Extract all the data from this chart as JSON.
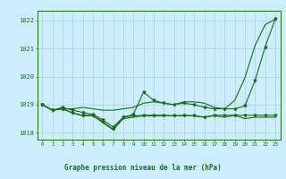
{
  "x": [
    0,
    1,
    2,
    3,
    4,
    5,
    6,
    7,
    8,
    9,
    10,
    11,
    12,
    13,
    14,
    15,
    16,
    17,
    18,
    19,
    20,
    21,
    22,
    23
  ],
  "line1": [
    1019.0,
    1018.8,
    1018.85,
    1018.85,
    1018.9,
    1018.85,
    1018.8,
    1018.8,
    1018.85,
    1018.9,
    1019.05,
    1019.1,
    1019.05,
    1019.0,
    1019.1,
    1019.1,
    1019.05,
    1018.9,
    1018.85,
    1019.15,
    1019.95,
    1021.1,
    1021.85,
    1022.05
  ],
  "line2": [
    1019.0,
    1018.8,
    1018.9,
    1018.8,
    1018.72,
    1018.65,
    1018.45,
    1018.2,
    1018.55,
    1018.65,
    1019.45,
    1019.15,
    1019.05,
    1019.0,
    1019.05,
    1019.0,
    1018.9,
    1018.85,
    1018.85,
    1018.85,
    1018.95,
    1019.85,
    1021.05,
    1022.05
  ],
  "line3": [
    1019.0,
    1018.8,
    1018.85,
    1018.7,
    1018.62,
    1018.62,
    1018.38,
    1018.12,
    1018.55,
    1018.6,
    1018.62,
    1018.62,
    1018.62,
    1018.6,
    1018.62,
    1018.6,
    1018.55,
    1018.62,
    1018.62,
    1018.62,
    1018.62,
    1018.62,
    1018.62,
    1018.62
  ],
  "line4": [
    1019.0,
    1018.8,
    1018.85,
    1018.7,
    1018.6,
    1018.6,
    1018.35,
    1018.1,
    1018.5,
    1018.55,
    1018.6,
    1018.6,
    1018.6,
    1018.6,
    1018.6,
    1018.6,
    1018.55,
    1018.6,
    1018.55,
    1018.62,
    1018.5,
    1018.55,
    1018.55,
    1018.55
  ],
  "bg_color": "#cceeff",
  "line_color": "#1a6b1a",
  "grid_color": "#aad4d4",
  "title": "Graphe pression niveau de la mer (hPa)",
  "ylim": [
    1017.75,
    1022.35
  ],
  "yticks": [
    1018,
    1019,
    1020,
    1021,
    1022
  ],
  "xticks": [
    0,
    1,
    2,
    3,
    4,
    5,
    6,
    7,
    8,
    9,
    10,
    11,
    12,
    13,
    14,
    15,
    16,
    17,
    18,
    19,
    20,
    21,
    22,
    23
  ]
}
